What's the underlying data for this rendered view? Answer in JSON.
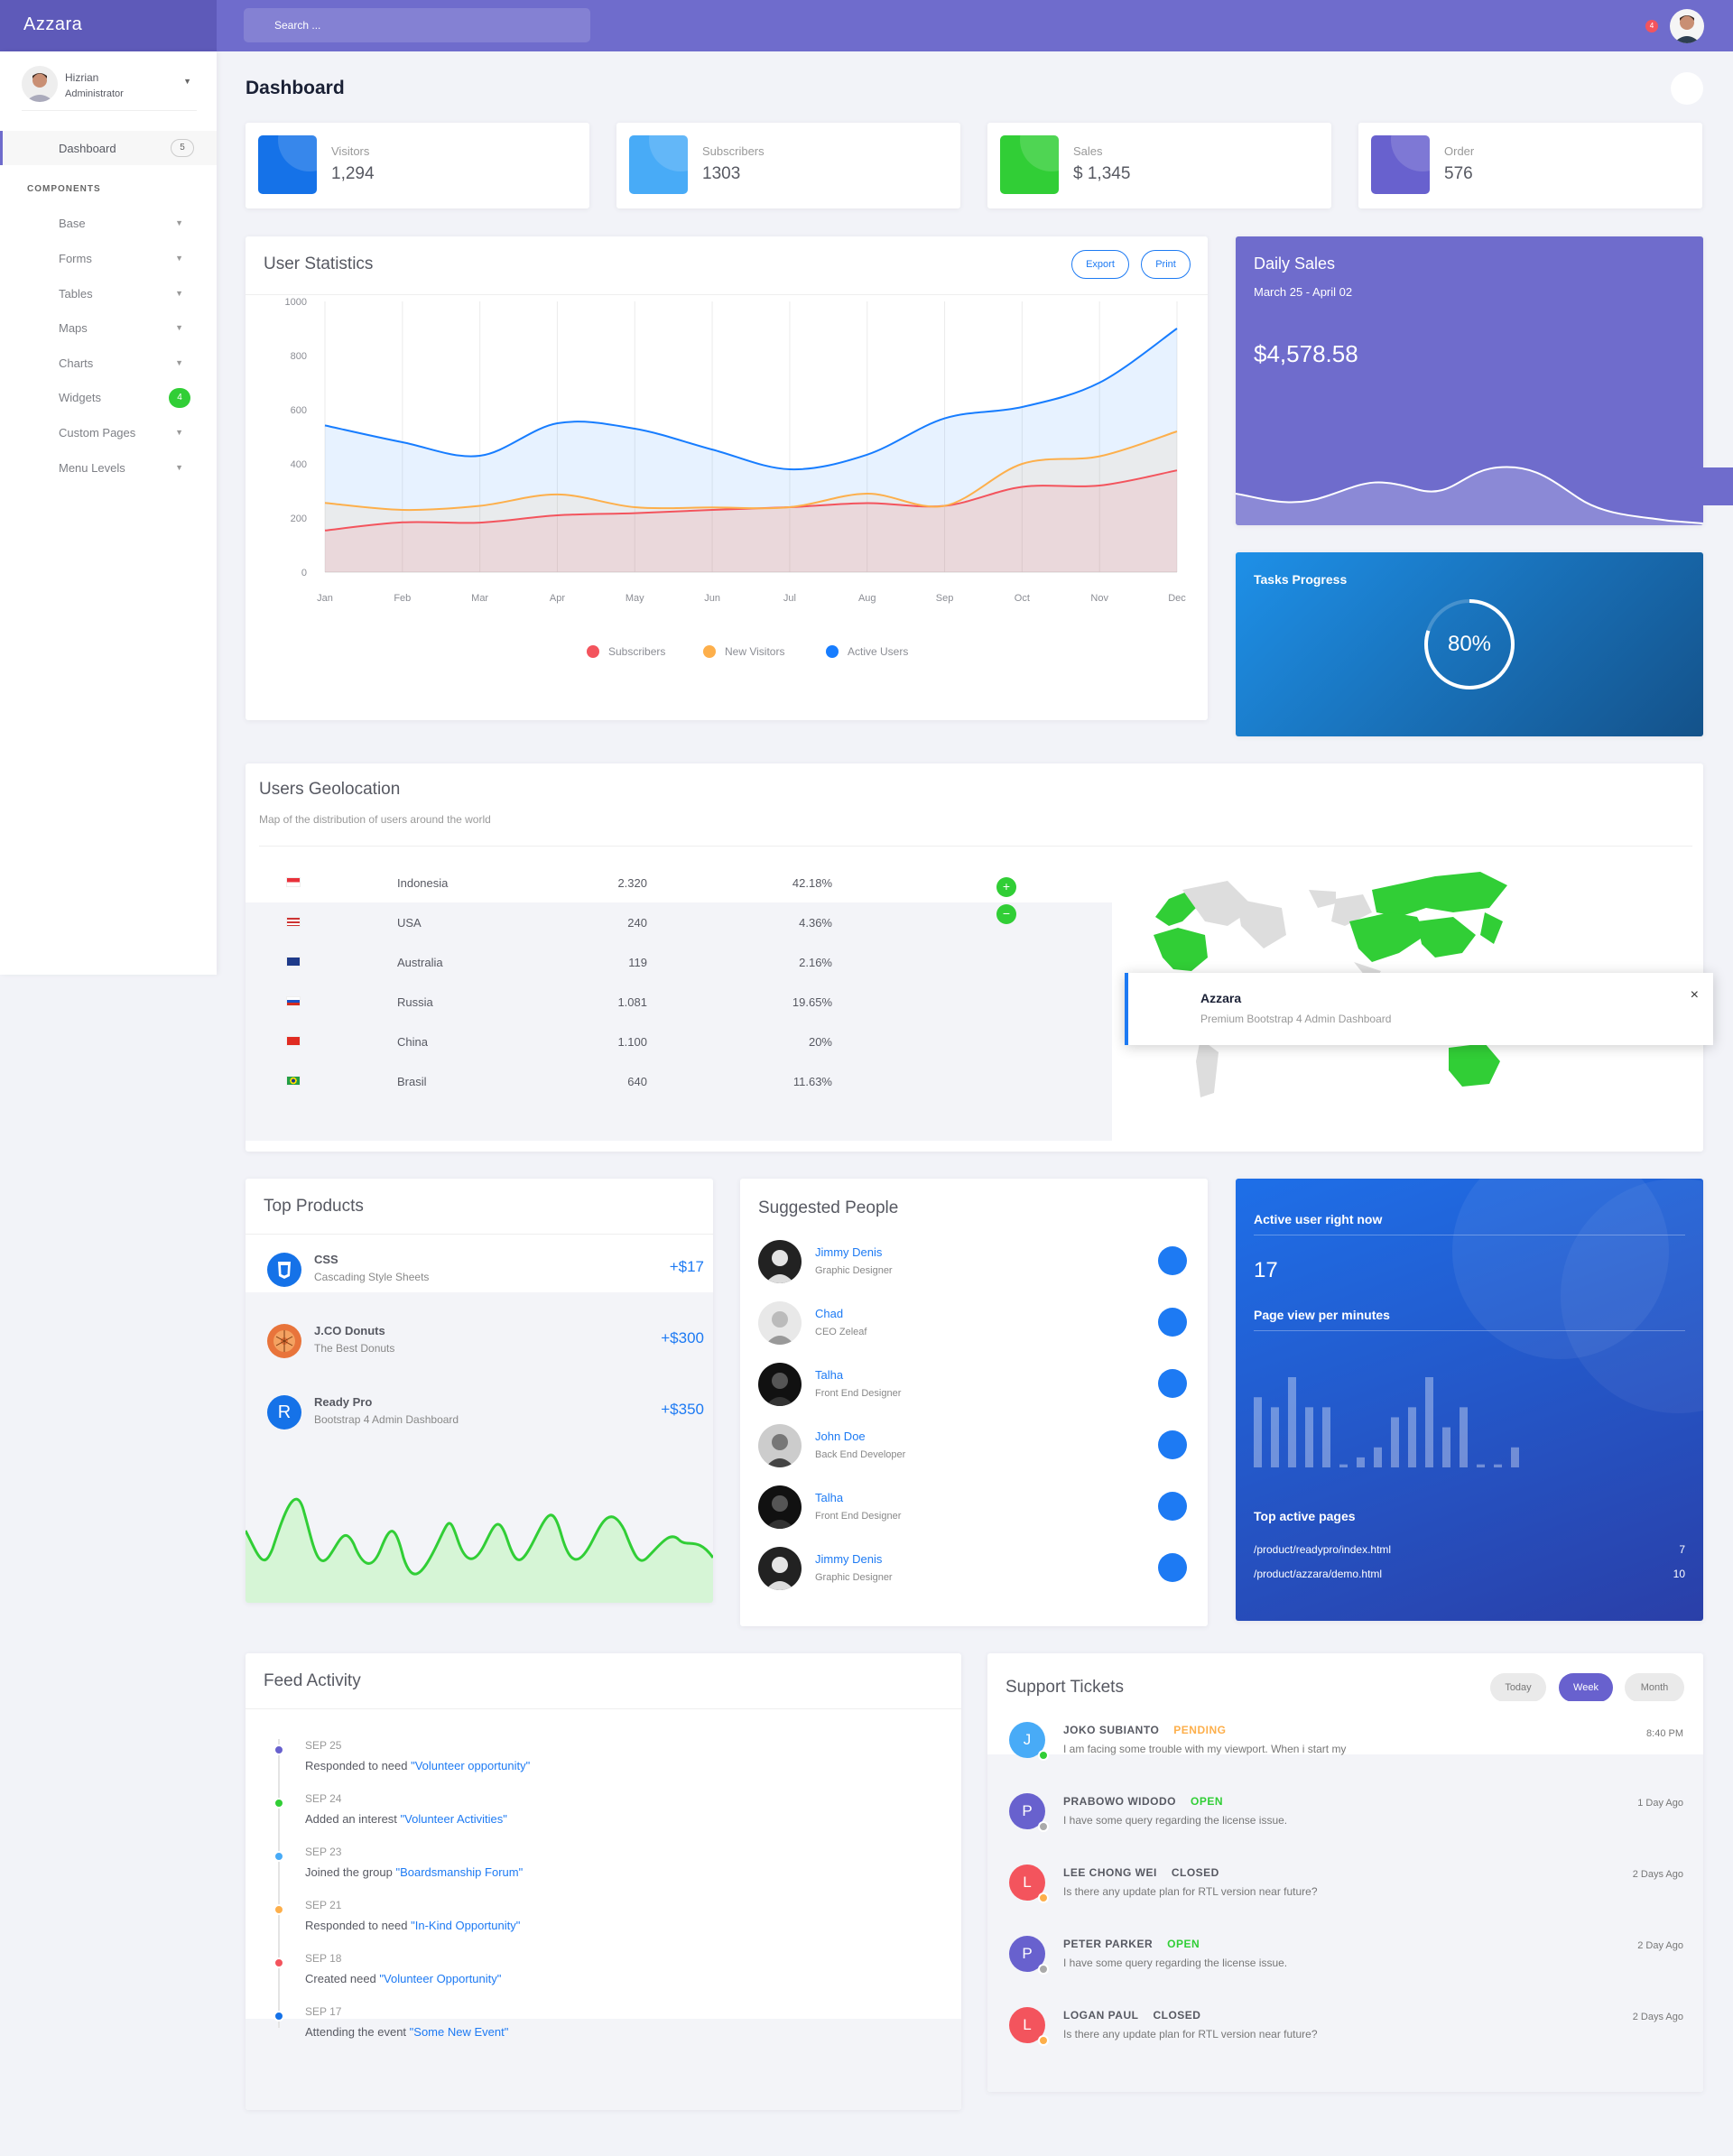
{
  "app": {
    "brand": "Azzara",
    "search_placeholder": "Search ...",
    "notif_count": "4"
  },
  "user": {
    "name": "Hizrian",
    "role": "Administrator"
  },
  "sidebar": {
    "dashboard_label": "Dashboard",
    "dashboard_badge": "5",
    "section": "COMPONENTS",
    "items": [
      {
        "label": "Base"
      },
      {
        "label": "Forms"
      },
      {
        "label": "Tables"
      },
      {
        "label": "Maps"
      },
      {
        "label": "Charts"
      },
      {
        "label": "Widgets",
        "badge": "4"
      },
      {
        "label": "Custom Pages"
      },
      {
        "label": "Menu Levels"
      }
    ]
  },
  "page": {
    "title": "Dashboard"
  },
  "stats": [
    {
      "label": "Visitors",
      "value": "1,294",
      "color": "#1572e8"
    },
    {
      "label": "Subscribers",
      "value": "1303",
      "color": "#48abf7"
    },
    {
      "label": "Sales",
      "value": "$ 1,345",
      "color": "#31ce36"
    },
    {
      "label": "Order",
      "value": "576",
      "color": "#6861ce"
    }
  ],
  "user_statistics": {
    "title": "User Statistics",
    "export_label": "Export",
    "print_label": "Print",
    "chart_data": {
      "type": "area",
      "categories": [
        "Jan",
        "Feb",
        "Mar",
        "Apr",
        "May",
        "Jun",
        "Jul",
        "Aug",
        "Sep",
        "Oct",
        "Nov",
        "Dec"
      ],
      "ylim": [
        0,
        1000
      ],
      "yticks": [
        "0",
        "200",
        "400",
        "600",
        "800",
        "1000"
      ],
      "series": [
        {
          "name": "Subscribers",
          "color": "#f3545d",
          "values": [
            154,
            184,
            183,
            210,
            218,
            230,
            240,
            255,
            245,
            315,
            320,
            376
          ]
        },
        {
          "name": "New Visitors",
          "color": "#fdaf4b",
          "values": [
            256,
            230,
            245,
            287,
            240,
            239,
            240,
            290,
            245,
            400,
            428,
            520
          ]
        },
        {
          "name": "Active Users",
          "color": "#177dff",
          "values": [
            542,
            480,
            430,
            550,
            530,
            453,
            380,
            434,
            568,
            610,
            700,
            900
          ]
        }
      ]
    }
  },
  "daily_sales": {
    "title": "Daily Sales",
    "range": "March 25 - April 02",
    "amount": "$4,578.58"
  },
  "tasks": {
    "title": "Tasks Progress",
    "percent_label": "80%",
    "percent": 0.8
  },
  "geo": {
    "title": "Users Geolocation",
    "subtitle": "Map of the distribution of users around the world",
    "rows": [
      {
        "country": "Indonesia",
        "count": "2.320",
        "pct": "42.18%",
        "flag": "id"
      },
      {
        "country": "USA",
        "count": "240",
        "pct": "4.36%",
        "flag": "us"
      },
      {
        "country": "Australia",
        "count": "119",
        "pct": "2.16%",
        "flag": "au"
      },
      {
        "country": "Russia",
        "count": "1.081",
        "pct": "19.65%",
        "flag": "ru"
      },
      {
        "country": "China",
        "count": "1.100",
        "pct": "20%",
        "flag": "cn"
      },
      {
        "country": "Brasil",
        "count": "640",
        "pct": "11.63%",
        "flag": "br"
      }
    ],
    "zoom_in": "+",
    "zoom_out": "−"
  },
  "toast": {
    "title": "Azzara",
    "message": "Premium Bootstrap 4 Admin Dashboard",
    "close": "×"
  },
  "top_products": {
    "title": "Top Products",
    "items": [
      {
        "name": "CSS",
        "desc": "Cascading Style Sheets",
        "price": "+$17",
        "icon": "css3-icon"
      },
      {
        "name": "J.CO Donuts",
        "desc": "The Best Donuts",
        "price": "+$300",
        "icon": "donut-icon"
      },
      {
        "name": "Ready Pro",
        "desc": "Bootstrap 4 Admin Dashboard",
        "price": "+$350",
        "letter": "R"
      }
    ]
  },
  "suggested": {
    "title": "Suggested People",
    "people": [
      {
        "name": "Jimmy Denis",
        "role": "Graphic Designer"
      },
      {
        "name": "Chad",
        "role": "CEO Zeleaf"
      },
      {
        "name": "Talha",
        "role": "Front End Designer"
      },
      {
        "name": "John Doe",
        "role": "Back End Developer"
      },
      {
        "name": "Talha",
        "role": "Front End Designer"
      },
      {
        "name": "Jimmy Denis",
        "role": "Graphic Designer"
      }
    ]
  },
  "active_users": {
    "title": "Active user right now",
    "count": "17",
    "pageview_title": "Page view per minutes",
    "pageview_values": [
      7,
      6,
      9,
      6,
      6,
      0.3,
      1,
      2,
      5,
      6,
      9,
      4,
      6,
      0.3,
      0.3,
      2
    ],
    "top_pages_title": "Top active pages",
    "pages": [
      {
        "path": "/product/readypro/index.html",
        "count": "7"
      },
      {
        "path": "/product/azzara/demo.html",
        "count": "10"
      }
    ]
  },
  "feed": {
    "title": "Feed Activity",
    "items": [
      {
        "date": "SEP 25",
        "text": "Responded to need ",
        "link": "\"Volunteer opportunity\"",
        "color": "#6861ce"
      },
      {
        "date": "SEP 24",
        "text": "Added an interest ",
        "link": "\"Volunteer Activities\"",
        "color": "#31ce36"
      },
      {
        "date": "SEP 23",
        "text": "Joined the group ",
        "link": "\"Boardsmanship Forum\"",
        "color": "#48abf7"
      },
      {
        "date": "SEP 21",
        "text": "Responded to need ",
        "link": "\"In-Kind Opportunity\"",
        "color": "#fdaf4b"
      },
      {
        "date": "SEP 18",
        "text": "Created need ",
        "link": "\"Volunteer Opportunity\"",
        "color": "#f3545d"
      },
      {
        "date": "SEP 17",
        "text": "Attending the event ",
        "link": "\"Some New Event\"",
        "color": "#1572e8"
      }
    ]
  },
  "tickets": {
    "title": "Support Tickets",
    "filters": [
      "Today",
      "Week",
      "Month"
    ],
    "items": [
      {
        "initial": "J",
        "name": "JOKO SUBIANTO",
        "status": "PENDING",
        "status_color": "#fdaf4b",
        "msg": "I am facing some trouble with my viewport. When i start my",
        "time": "8:40 PM",
        "avatar_color": "#48abf7",
        "online_color": "#31ce36"
      },
      {
        "initial": "P",
        "name": "PRABOWO WIDODO",
        "status": "OPEN",
        "status_color": "#31ce36",
        "msg": "I have some query regarding the license issue.",
        "time": "1 Day Ago",
        "avatar_color": "#6861ce",
        "online_color": "#aaa"
      },
      {
        "initial": "L",
        "name": "LEE CHONG WEI",
        "status": "CLOSED",
        "status_color": "#575962",
        "msg": "Is there any update plan for RTL version near future?",
        "time": "2 Days Ago",
        "avatar_color": "#f3545d",
        "online_color": "#fdaf4b"
      },
      {
        "initial": "P",
        "name": "PETER PARKER",
        "status": "OPEN",
        "status_color": "#31ce36",
        "msg": "I have some query regarding the license issue.",
        "time": "2 Day Ago",
        "avatar_color": "#6861ce",
        "online_color": "#aaa"
      },
      {
        "initial": "L",
        "name": "LOGAN PAUL",
        "status": "CLOSED",
        "status_color": "#575962",
        "msg": "Is there any update plan for RTL version near future?",
        "time": "2 Days Ago",
        "avatar_color": "#f3545d",
        "online_color": "#fdaf4b"
      }
    ]
  }
}
